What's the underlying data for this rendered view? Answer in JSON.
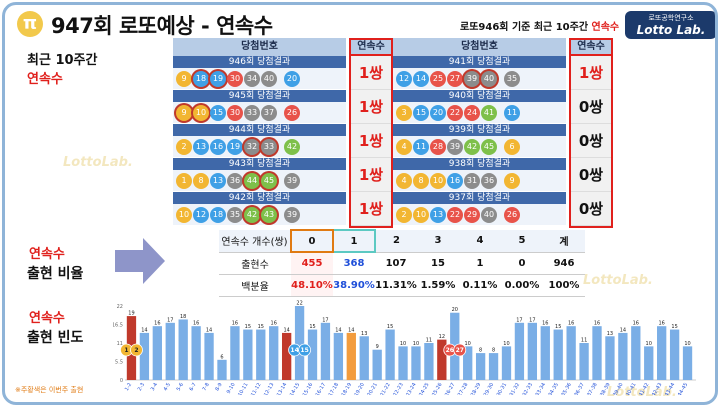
{
  "header": {
    "logo_glyph": "π",
    "title": "947회 로또예상 - 연속수",
    "criteria_prefix": "로또946회 기준 최근 10주간 ",
    "criteria_highlight": "연속수",
    "brand_top": "로또공학연구소",
    "brand_bottom": "Lotto Lab."
  },
  "left": {
    "recent": "최근 10주간",
    "recent_sub": "연속수",
    "ratio_1": "연속수",
    "ratio_2": "출현 비율",
    "freq_1": "연속수",
    "freq_2": "출현 빈도",
    "note": "※주황색은 이번주 출현",
    "watermark": "LottoLab."
  },
  "colors": {
    "yellow": "#f2b632",
    "blue": "#3fa0e6",
    "red": "#e8534a",
    "gray": "#8c8c8c",
    "green": "#7ec04a"
  },
  "draws": {
    "header_numbers": "당첨번호",
    "header_consecutive": "연속수",
    "left": [
      {
        "title": "946회 당첨결과",
        "balls": [
          9,
          18,
          19,
          30,
          34,
          40
        ],
        "bonus": 20,
        "hl": [
          18,
          19
        ],
        "cons": "1쌍"
      },
      {
        "title": "945회 당첨결과",
        "balls": [
          9,
          10,
          15,
          30,
          33,
          37
        ],
        "bonus": 26,
        "hl": [
          9,
          10
        ],
        "cons": "1쌍"
      },
      {
        "title": "944회 당첨결과",
        "balls": [
          2,
          13,
          16,
          19,
          32,
          33
        ],
        "bonus": 42,
        "hl": [
          32,
          33
        ],
        "cons": "1쌍"
      },
      {
        "title": "943회 당첨결과",
        "balls": [
          1,
          8,
          13,
          36,
          44,
          45
        ],
        "bonus": 39,
        "hl": [
          44,
          45
        ],
        "cons": "1쌍"
      },
      {
        "title": "942회 당첨결과",
        "balls": [
          10,
          12,
          18,
          35,
          42,
          43
        ],
        "bonus": 39,
        "hl": [
          42,
          43
        ],
        "cons": "1쌍"
      }
    ],
    "right": [
      {
        "title": "941회 당첨결과",
        "balls": [
          12,
          14,
          25,
          27,
          39,
          40
        ],
        "bonus": 35,
        "hl": [
          39,
          40
        ],
        "cons": "1쌍"
      },
      {
        "title": "940회 당첨결과",
        "balls": [
          3,
          15,
          20,
          22,
          24,
          41
        ],
        "bonus": 11,
        "hl": [],
        "cons": "0쌍"
      },
      {
        "title": "939회 당첨결과",
        "balls": [
          4,
          11,
          28,
          39,
          42,
          45
        ],
        "bonus": 6,
        "hl": [],
        "cons": "0쌍"
      },
      {
        "title": "938회 당첨결과",
        "balls": [
          4,
          8,
          10,
          16,
          31,
          36
        ],
        "bonus": 9,
        "hl": [],
        "cons": "0쌍"
      },
      {
        "title": "937회 당첨결과",
        "balls": [
          2,
          10,
          13,
          22,
          29,
          40
        ],
        "bonus": 26,
        "hl": [],
        "cons": "0쌍"
      }
    ]
  },
  "stats": {
    "header_label": "연속수 개수(쌍)",
    "columns": [
      "0",
      "1",
      "2",
      "3",
      "4",
      "5",
      "계"
    ],
    "count_label": "출현수",
    "counts": [
      "455",
      "368",
      "107",
      "15",
      "1",
      "0",
      "946"
    ],
    "pct_label": "백분율",
    "pcts": [
      "48.10%",
      "38.90%",
      "11.31%",
      "1.59%",
      "0.11%",
      "0.00%",
      "100%"
    ]
  },
  "chart_data": {
    "type": "bar",
    "title": "",
    "xlabel": "",
    "ylabel": "",
    "ylim": [
      0,
      22
    ],
    "yticks": [
      0,
      5.5,
      11,
      16.5,
      22
    ],
    "categories": [
      "1-2",
      "2-3",
      "3-4",
      "4-5",
      "5-6",
      "6-7",
      "7-8",
      "8-9",
      "9-10",
      "10-11",
      "11-12",
      "12-13",
      "13-14",
      "14-15",
      "15-16",
      "16-17",
      "17-18",
      "18-19",
      "19-20",
      "20-21",
      "21-22",
      "22-23",
      "23-24",
      "24-25",
      "25-26",
      "26-27",
      "27-28",
      "28-29",
      "29-30",
      "30-31",
      "31-32",
      "32-33",
      "33-34",
      "34-35",
      "35-36",
      "36-37",
      "37-38",
      "38-39",
      "39-40",
      "40-41",
      "41-42",
      "42-43",
      "43-44",
      "44-45"
    ],
    "values": [
      19,
      14,
      16,
      17,
      18,
      16,
      14,
      6,
      16,
      15,
      15,
      16,
      14,
      22,
      15,
      17,
      14,
      14,
      13,
      9,
      15,
      10,
      10,
      11,
      12,
      20,
      10,
      8,
      8,
      10,
      17,
      17,
      16,
      15,
      16,
      11,
      16,
      13,
      14,
      16,
      10,
      16,
      15,
      10
    ],
    "highlight_red": [
      "1-2",
      "13-14",
      "25-26"
    ],
    "highlight_orange": [
      "18-19"
    ],
    "ball_markers": [
      {
        "category": "1-2",
        "numbers": [
          1,
          2
        ]
      },
      {
        "category": "14-15",
        "numbers": [
          14,
          15
        ]
      },
      {
        "category": "26-27",
        "numbers": [
          26,
          27
        ]
      }
    ],
    "grid": false
  }
}
